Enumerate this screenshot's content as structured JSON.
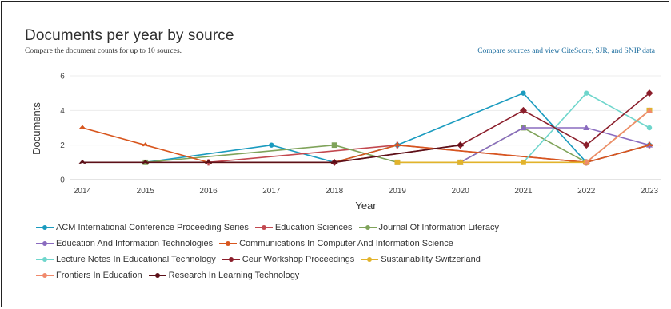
{
  "header": {
    "title": "Documents per year by source",
    "subtitle": "Compare the document counts for up to 10 sources.",
    "compare_link": "Compare sources and view CiteScore, SJR, and SNIP data"
  },
  "chart_data": {
    "type": "line",
    "xlabel": "Year",
    "ylabel": "Documents",
    "ylim": [
      0,
      6
    ],
    "yticks": [
      0,
      2,
      4,
      6
    ],
    "grid": "horizontal",
    "legend_position": "bottom",
    "x": [
      2014,
      2015,
      2016,
      2017,
      2018,
      2019,
      2020,
      2021,
      2022,
      2023
    ],
    "series": [
      {
        "name": "ACM International Conference Proceeding Series",
        "color": "#1a9bbf",
        "marker": "circle",
        "points": [
          [
            2015,
            1
          ],
          [
            2017,
            2
          ],
          [
            2018,
            1
          ],
          [
            2019,
            2
          ],
          [
            2021,
            5
          ],
          [
            2022,
            1
          ],
          [
            2023,
            2
          ]
        ]
      },
      {
        "name": "Education Sciences",
        "color": "#c2484f",
        "marker": "plus",
        "points": [
          [
            2016,
            1
          ],
          [
            2019,
            2
          ],
          [
            2022,
            1
          ],
          [
            2023,
            2
          ]
        ]
      },
      {
        "name": "Journal Of Information Literacy",
        "color": "#7fa35a",
        "marker": "square",
        "points": [
          [
            2015,
            1
          ],
          [
            2018,
            2
          ],
          [
            2019,
            1
          ],
          [
            2020,
            1
          ],
          [
            2021,
            3
          ],
          [
            2022,
            1
          ],
          [
            2023,
            4
          ]
        ]
      },
      {
        "name": "Education And Information Technologies",
        "color": "#8a6bbf",
        "marker": "triangle",
        "points": [
          [
            2020,
            1
          ],
          [
            2021,
            3
          ],
          [
            2022,
            3
          ],
          [
            2023,
            2
          ]
        ]
      },
      {
        "name": "Communications In Computer And Information Science",
        "color": "#d8561e",
        "marker": "chevron",
        "points": [
          [
            2014,
            3
          ],
          [
            2015,
            2
          ],
          [
            2016,
            1
          ],
          [
            2018,
            1
          ],
          [
            2019,
            2
          ],
          [
            2022,
            1
          ],
          [
            2023,
            2
          ]
        ]
      },
      {
        "name": "Lecture Notes In Educational Technology",
        "color": "#6fd6cc",
        "marker": "circle",
        "points": [
          [
            2021,
            1
          ],
          [
            2022,
            5
          ],
          [
            2023,
            3
          ]
        ]
      },
      {
        "name": "Ceur Workshop Proceedings",
        "color": "#8b1e2b",
        "marker": "diamond",
        "points": [
          [
            2018,
            1
          ],
          [
            2020,
            2
          ],
          [
            2021,
            4
          ],
          [
            2022,
            2
          ],
          [
            2023,
            5
          ]
        ]
      },
      {
        "name": "Sustainability Switzerland",
        "color": "#e2b32b",
        "marker": "square",
        "points": [
          [
            2019,
            1
          ],
          [
            2020,
            1
          ],
          [
            2021,
            1
          ],
          [
            2022,
            1
          ],
          [
            2023,
            4
          ]
        ]
      },
      {
        "name": "Frontiers In Education",
        "color": "#f08a6c",
        "marker": "triangle",
        "points": [
          [
            2022,
            1
          ],
          [
            2023,
            4
          ]
        ]
      },
      {
        "name": "Research In Learning Technology",
        "color": "#5c1018",
        "marker": "chevron",
        "points": [
          [
            2014,
            1
          ],
          [
            2015,
            1
          ],
          [
            2016,
            1
          ],
          [
            2018,
            1
          ],
          [
            2020,
            2
          ]
        ]
      }
    ],
    "legend_rows": [
      [
        0,
        1,
        2
      ],
      [
        3,
        4
      ],
      [
        5,
        6,
        7
      ],
      [
        8,
        9
      ]
    ]
  }
}
